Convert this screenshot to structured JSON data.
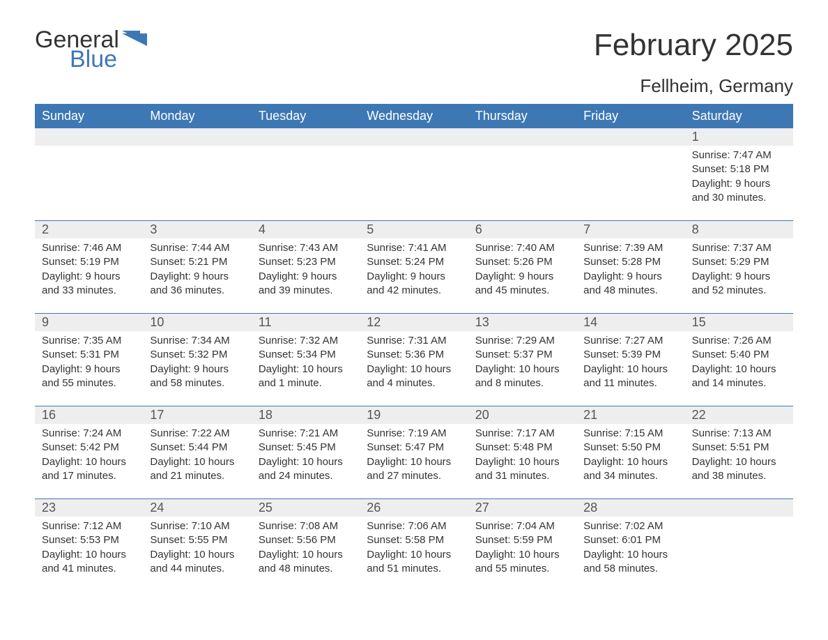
{
  "brand": {
    "word1": "General",
    "word2": "Blue"
  },
  "title": "February 2025",
  "location": "Fellheim, Germany",
  "colors": {
    "header_bg": "#3d78b5",
    "header_text": "#ffffff",
    "daynum_bg": "#eeeeee",
    "rule": "#3d78b5",
    "body_text": "#333333",
    "logo_blue": "#3d78b5"
  },
  "day_labels": [
    "Sunday",
    "Monday",
    "Tuesday",
    "Wednesday",
    "Thursday",
    "Friday",
    "Saturday"
  ],
  "weeks": [
    [
      {
        "n": "",
        "sunrise": "",
        "sunset": "",
        "daylight": ""
      },
      {
        "n": "",
        "sunrise": "",
        "sunset": "",
        "daylight": ""
      },
      {
        "n": "",
        "sunrise": "",
        "sunset": "",
        "daylight": ""
      },
      {
        "n": "",
        "sunrise": "",
        "sunset": "",
        "daylight": ""
      },
      {
        "n": "",
        "sunrise": "",
        "sunset": "",
        "daylight": ""
      },
      {
        "n": "",
        "sunrise": "",
        "sunset": "",
        "daylight": ""
      },
      {
        "n": "1",
        "sunrise": "Sunrise: 7:47 AM",
        "sunset": "Sunset: 5:18 PM",
        "daylight": "Daylight: 9 hours and 30 minutes."
      }
    ],
    [
      {
        "n": "2",
        "sunrise": "Sunrise: 7:46 AM",
        "sunset": "Sunset: 5:19 PM",
        "daylight": "Daylight: 9 hours and 33 minutes."
      },
      {
        "n": "3",
        "sunrise": "Sunrise: 7:44 AM",
        "sunset": "Sunset: 5:21 PM",
        "daylight": "Daylight: 9 hours and 36 minutes."
      },
      {
        "n": "4",
        "sunrise": "Sunrise: 7:43 AM",
        "sunset": "Sunset: 5:23 PM",
        "daylight": "Daylight: 9 hours and 39 minutes."
      },
      {
        "n": "5",
        "sunrise": "Sunrise: 7:41 AM",
        "sunset": "Sunset: 5:24 PM",
        "daylight": "Daylight: 9 hours and 42 minutes."
      },
      {
        "n": "6",
        "sunrise": "Sunrise: 7:40 AM",
        "sunset": "Sunset: 5:26 PM",
        "daylight": "Daylight: 9 hours and 45 minutes."
      },
      {
        "n": "7",
        "sunrise": "Sunrise: 7:39 AM",
        "sunset": "Sunset: 5:28 PM",
        "daylight": "Daylight: 9 hours and 48 minutes."
      },
      {
        "n": "8",
        "sunrise": "Sunrise: 7:37 AM",
        "sunset": "Sunset: 5:29 PM",
        "daylight": "Daylight: 9 hours and 52 minutes."
      }
    ],
    [
      {
        "n": "9",
        "sunrise": "Sunrise: 7:35 AM",
        "sunset": "Sunset: 5:31 PM",
        "daylight": "Daylight: 9 hours and 55 minutes."
      },
      {
        "n": "10",
        "sunrise": "Sunrise: 7:34 AM",
        "sunset": "Sunset: 5:32 PM",
        "daylight": "Daylight: 9 hours and 58 minutes."
      },
      {
        "n": "11",
        "sunrise": "Sunrise: 7:32 AM",
        "sunset": "Sunset: 5:34 PM",
        "daylight": "Daylight: 10 hours and 1 minute."
      },
      {
        "n": "12",
        "sunrise": "Sunrise: 7:31 AM",
        "sunset": "Sunset: 5:36 PM",
        "daylight": "Daylight: 10 hours and 4 minutes."
      },
      {
        "n": "13",
        "sunrise": "Sunrise: 7:29 AM",
        "sunset": "Sunset: 5:37 PM",
        "daylight": "Daylight: 10 hours and 8 minutes."
      },
      {
        "n": "14",
        "sunrise": "Sunrise: 7:27 AM",
        "sunset": "Sunset: 5:39 PM",
        "daylight": "Daylight: 10 hours and 11 minutes."
      },
      {
        "n": "15",
        "sunrise": "Sunrise: 7:26 AM",
        "sunset": "Sunset: 5:40 PM",
        "daylight": "Daylight: 10 hours and 14 minutes."
      }
    ],
    [
      {
        "n": "16",
        "sunrise": "Sunrise: 7:24 AM",
        "sunset": "Sunset: 5:42 PM",
        "daylight": "Daylight: 10 hours and 17 minutes."
      },
      {
        "n": "17",
        "sunrise": "Sunrise: 7:22 AM",
        "sunset": "Sunset: 5:44 PM",
        "daylight": "Daylight: 10 hours and 21 minutes."
      },
      {
        "n": "18",
        "sunrise": "Sunrise: 7:21 AM",
        "sunset": "Sunset: 5:45 PM",
        "daylight": "Daylight: 10 hours and 24 minutes."
      },
      {
        "n": "19",
        "sunrise": "Sunrise: 7:19 AM",
        "sunset": "Sunset: 5:47 PM",
        "daylight": "Daylight: 10 hours and 27 minutes."
      },
      {
        "n": "20",
        "sunrise": "Sunrise: 7:17 AM",
        "sunset": "Sunset: 5:48 PM",
        "daylight": "Daylight: 10 hours and 31 minutes."
      },
      {
        "n": "21",
        "sunrise": "Sunrise: 7:15 AM",
        "sunset": "Sunset: 5:50 PM",
        "daylight": "Daylight: 10 hours and 34 minutes."
      },
      {
        "n": "22",
        "sunrise": "Sunrise: 7:13 AM",
        "sunset": "Sunset: 5:51 PM",
        "daylight": "Daylight: 10 hours and 38 minutes."
      }
    ],
    [
      {
        "n": "23",
        "sunrise": "Sunrise: 7:12 AM",
        "sunset": "Sunset: 5:53 PM",
        "daylight": "Daylight: 10 hours and 41 minutes."
      },
      {
        "n": "24",
        "sunrise": "Sunrise: 7:10 AM",
        "sunset": "Sunset: 5:55 PM",
        "daylight": "Daylight: 10 hours and 44 minutes."
      },
      {
        "n": "25",
        "sunrise": "Sunrise: 7:08 AM",
        "sunset": "Sunset: 5:56 PM",
        "daylight": "Daylight: 10 hours and 48 minutes."
      },
      {
        "n": "26",
        "sunrise": "Sunrise: 7:06 AM",
        "sunset": "Sunset: 5:58 PM",
        "daylight": "Daylight: 10 hours and 51 minutes."
      },
      {
        "n": "27",
        "sunrise": "Sunrise: 7:04 AM",
        "sunset": "Sunset: 5:59 PM",
        "daylight": "Daylight: 10 hours and 55 minutes."
      },
      {
        "n": "28",
        "sunrise": "Sunrise: 7:02 AM",
        "sunset": "Sunset: 6:01 PM",
        "daylight": "Daylight: 10 hours and 58 minutes."
      },
      {
        "n": "",
        "sunrise": "",
        "sunset": "",
        "daylight": ""
      }
    ]
  ]
}
